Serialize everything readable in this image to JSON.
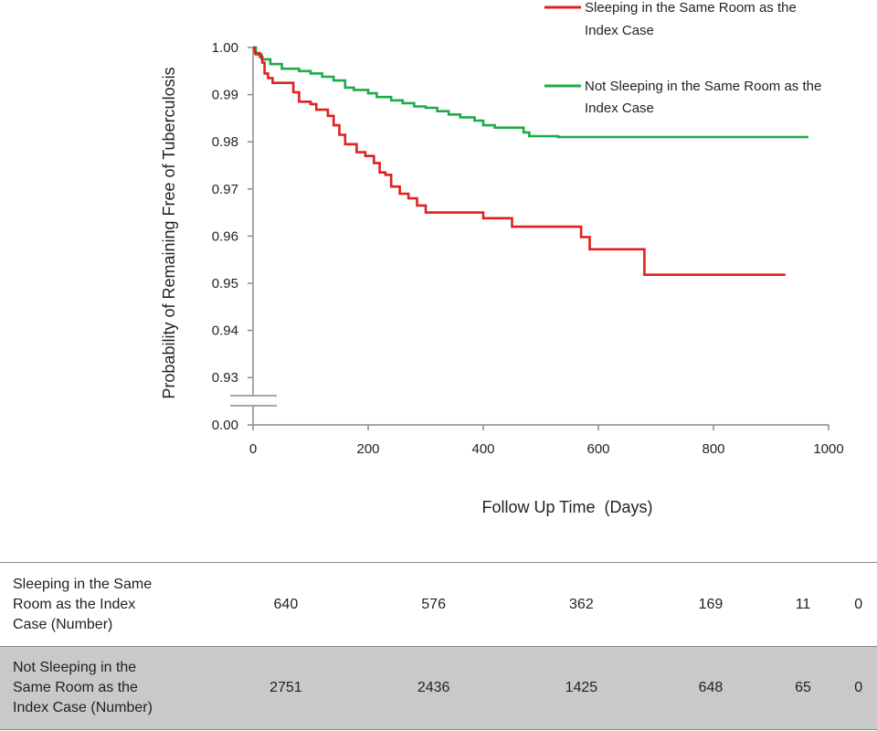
{
  "chart_data": {
    "type": "line",
    "title": "",
    "xlabel": "Follow Up Time  (Days)",
    "ylabel": "Probability of Remaining Free of Tuberculosis",
    "xlim": [
      0,
      1000
    ],
    "x_ticks": [
      "0",
      "200",
      "400",
      "600",
      "800",
      "1000"
    ],
    "y_ticks": [
      "1.00",
      "0.99",
      "0.98",
      "0.97",
      "0.96",
      "0.95",
      "0.94",
      "0.93",
      "0.00"
    ],
    "y_axis_break": "between 0.93 and 0.00",
    "grid": false,
    "legend_placement": "top-right",
    "series": [
      {
        "name": "Sleeping in the Same Room as the Index Case",
        "color": "#e02020",
        "step": true,
        "points": [
          [
            0,
            1.0
          ],
          [
            3,
            0.9988
          ],
          [
            12,
            0.998
          ],
          [
            16,
            0.9968
          ],
          [
            20,
            0.9945
          ],
          [
            26,
            0.9935
          ],
          [
            34,
            0.9925
          ],
          [
            70,
            0.9905
          ],
          [
            80,
            0.9885
          ],
          [
            100,
            0.988
          ],
          [
            110,
            0.9868
          ],
          [
            130,
            0.9855
          ],
          [
            140,
            0.9835
          ],
          [
            150,
            0.9815
          ],
          [
            160,
            0.9795
          ],
          [
            180,
            0.9778
          ],
          [
            195,
            0.977
          ],
          [
            210,
            0.9755
          ],
          [
            220,
            0.9735
          ],
          [
            230,
            0.973
          ],
          [
            240,
            0.9705
          ],
          [
            255,
            0.969
          ],
          [
            270,
            0.968
          ],
          [
            285,
            0.9665
          ],
          [
            300,
            0.965
          ],
          [
            400,
            0.9638
          ],
          [
            450,
            0.962
          ],
          [
            570,
            0.9598
          ],
          [
            585,
            0.9572
          ],
          [
            680,
            0.9518
          ],
          [
            925,
            0.9518
          ]
        ]
      },
      {
        "name": "Not Sleeping in the Same Room as the Index Case",
        "color": "#1faa4a",
        "step": true,
        "points": [
          [
            0,
            1.0
          ],
          [
            5,
            0.9985
          ],
          [
            15,
            0.9975
          ],
          [
            30,
            0.9965
          ],
          [
            50,
            0.9955
          ],
          [
            80,
            0.995
          ],
          [
            100,
            0.9945
          ],
          [
            120,
            0.9938
          ],
          [
            140,
            0.993
          ],
          [
            160,
            0.9915
          ],
          [
            175,
            0.991
          ],
          [
            200,
            0.9903
          ],
          [
            215,
            0.9895
          ],
          [
            240,
            0.9888
          ],
          [
            260,
            0.9882
          ],
          [
            280,
            0.9875
          ],
          [
            300,
            0.9872
          ],
          [
            320,
            0.9865
          ],
          [
            340,
            0.9858
          ],
          [
            360,
            0.9852
          ],
          [
            385,
            0.9845
          ],
          [
            400,
            0.9835
          ],
          [
            420,
            0.983
          ],
          [
            470,
            0.982
          ],
          [
            480,
            0.9812
          ],
          [
            530,
            0.981
          ],
          [
            965,
            0.981
          ]
        ]
      }
    ]
  },
  "legend": {
    "a_line1": "Sleeping in the Same Room as the",
    "a_line2": "Index Case",
    "b_line1": "Not Sleeping in the Same Room as the",
    "b_line2": "Index Case"
  },
  "risk_table": {
    "rows": [
      {
        "label_lines": [
          "Sleeping in the Same",
          "Room as the Index",
          "Case (Number)"
        ],
        "values": [
          "640",
          "576",
          "362",
          "169",
          "11",
          "0"
        ]
      },
      {
        "label_lines": [
          "Not Sleeping in the",
          "Same Room as the",
          "Index Case (Number)"
        ],
        "values": [
          "2751",
          "2436",
          "1425",
          "648",
          "65",
          "0"
        ]
      }
    ]
  }
}
